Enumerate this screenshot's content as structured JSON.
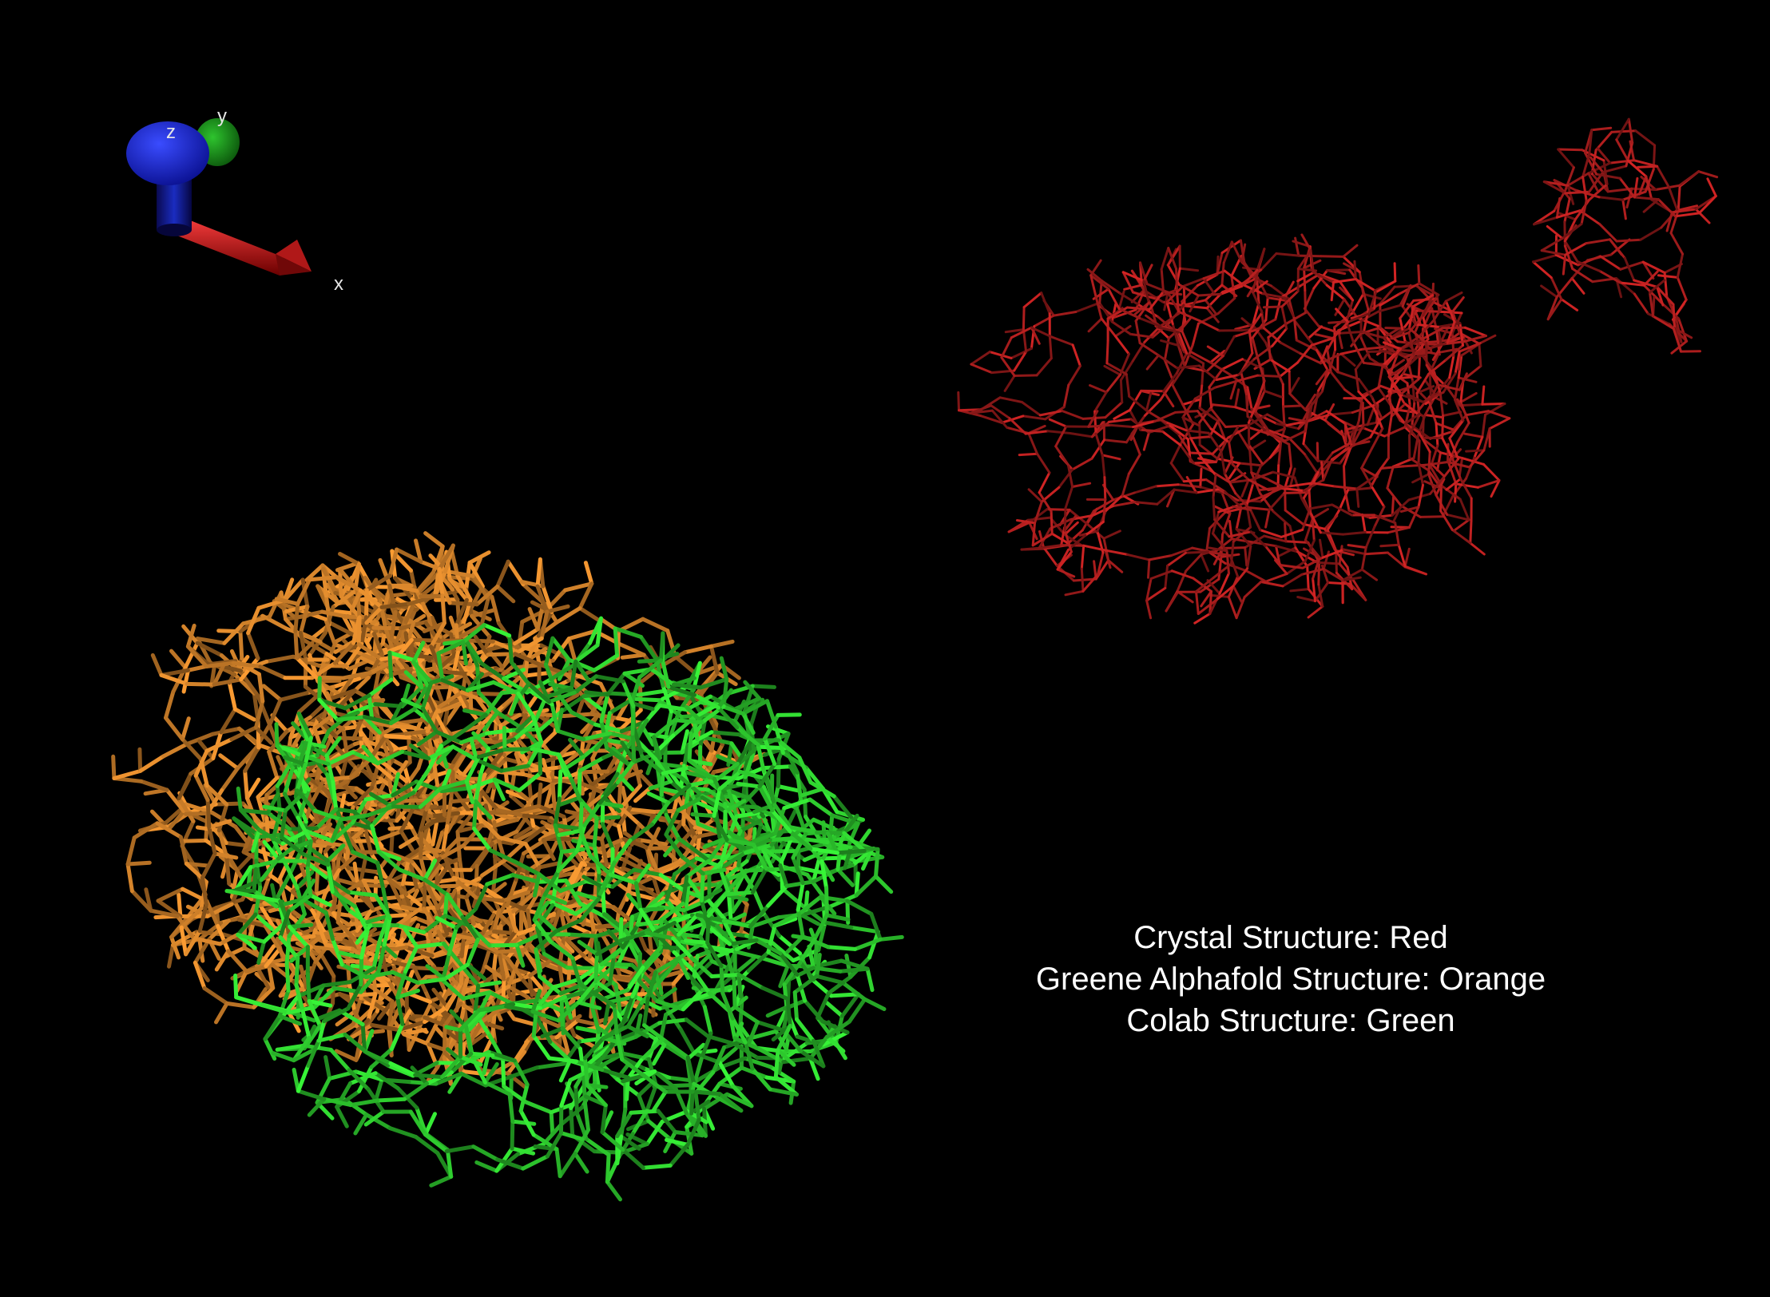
{
  "axes": {
    "x_label": "x",
    "y_label": "y",
    "z_label": "z",
    "x_color": "#c81e1e",
    "y_color": "#1e8c1e",
    "z_color": "#1e28c8"
  },
  "legend": {
    "line1": "Crystal Structure: Red",
    "line2": "Greene Alphafold Structure: Orange",
    "line3": "Colab Structure: Green"
  },
  "structures": {
    "crystal_color": "#b01e1e",
    "alphafold_color": "#d2822a",
    "colab_color": "#2ecc2e"
  },
  "background": "#000000"
}
